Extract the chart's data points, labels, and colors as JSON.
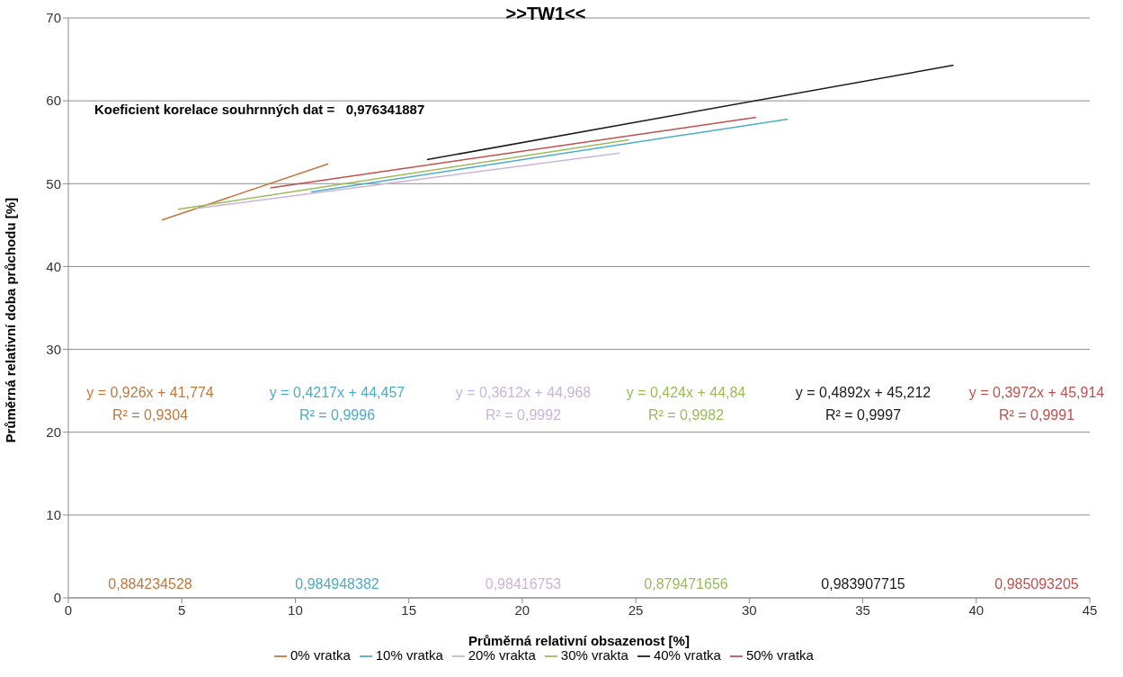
{
  "chart_data": {
    "type": "line",
    "title": ">>TW1<<",
    "xlabel": "Průměrná relativní obsazenost [%]",
    "ylabel": "Průměrná relativní doba průchodu [%]",
    "xlim": [
      0,
      45
    ],
    "xticks": [
      0,
      5,
      10,
      15,
      20,
      25,
      30,
      35,
      40,
      45
    ],
    "ylim": [
      0,
      70
    ],
    "yticks": [
      0,
      10,
      20,
      30,
      40,
      50,
      60,
      70
    ],
    "grid": "y",
    "legend": "bottom",
    "marker": "none",
    "line_style": "solid",
    "series": [
      {
        "name": "0% vratka",
        "color": "#c0783c",
        "x": [
          4.12,
          11.45
        ],
        "values": [
          45.6,
          52.4
        ]
      },
      {
        "name": "10% vratka",
        "color": "#4bacc6",
        "x": [
          10.7,
          31.7
        ],
        "values": [
          49.0,
          57.8
        ]
      },
      {
        "name": "20% vrakta",
        "color": "#c9b4dd",
        "x": [
          5.6,
          24.3
        ],
        "values": [
          47.0,
          53.7
        ]
      },
      {
        "name": "30% vrakta",
        "color": "#9bbb59",
        "x": [
          4.83,
          24.7
        ],
        "values": [
          46.9,
          55.3
        ]
      },
      {
        "name": "40% vratka",
        "color": "#1a1a1a",
        "x": [
          15.8,
          39.0
        ],
        "values": [
          52.9,
          64.3
        ]
      },
      {
        "name": "50% vratka",
        "color": "#c0504d",
        "x": [
          8.9,
          30.3
        ],
        "values": [
          49.5,
          58.0
        ]
      }
    ],
    "annotations": [
      "Koeficient korelace souhrnných dat =   0,976341887",
      "y = 0,926x + 41,774",
      "R² = 0,9304",
      "y = 0,4217x + 44,457",
      "R² = 0,9996",
      "y = 0,3612x + 44,968",
      "R² = 0,9992",
      "y = 0,424x + 44,84",
      "R² = 0,9982",
      "y = 0,4892x + 45,212",
      "R² = 0,9997",
      "y = 0,3972x + 45,914",
      "R² = 0,9991",
      "0,884234528",
      "0,984948382",
      "0,98416753",
      "0,879471656",
      "0,983907715",
      "0,985093205"
    ]
  }
}
